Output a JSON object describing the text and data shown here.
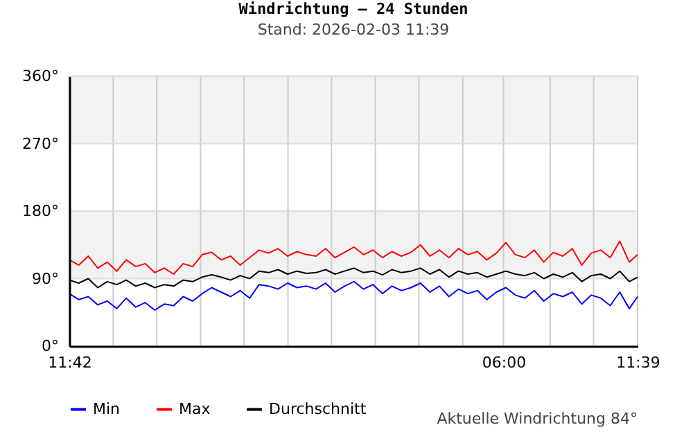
{
  "chart_data": {
    "type": "line",
    "title": "Windrichtung – 24 Stunden",
    "subtitle": "Stand: 2026-02-03 11:39",
    "x": [
      "2026-02-02T11:42",
      "2026-02-02T12:06",
      "2026-02-02T12:30",
      "2026-02-02T12:54",
      "2026-02-02T13:18",
      "2026-02-02T13:42",
      "2026-02-02T14:06",
      "2026-02-02T14:30",
      "2026-02-02T14:54",
      "2026-02-02T15:18",
      "2026-02-02T15:42",
      "2026-02-02T16:06",
      "2026-02-02T16:30",
      "2026-02-02T16:54",
      "2026-02-02T17:18",
      "2026-02-02T17:42",
      "2026-02-02T18:06",
      "2026-02-02T18:30",
      "2026-02-02T18:54",
      "2026-02-02T19:18",
      "2026-02-02T19:42",
      "2026-02-02T20:06",
      "2026-02-02T20:30",
      "2026-02-02T20:54",
      "2026-02-02T21:18",
      "2026-02-02T21:42",
      "2026-02-02T22:06",
      "2026-02-02T22:30",
      "2026-02-02T22:54",
      "2026-02-02T23:18",
      "2026-02-02T23:42",
      "2026-02-03T00:06",
      "2026-02-03T00:30",
      "2026-02-03T00:54",
      "2026-02-03T01:18",
      "2026-02-03T01:42",
      "2026-02-03T02:06",
      "2026-02-03T02:30",
      "2026-02-03T02:54",
      "2026-02-03T03:18",
      "2026-02-03T03:42",
      "2026-02-03T04:06",
      "2026-02-03T04:30",
      "2026-02-03T04:54",
      "2026-02-03T05:18",
      "2026-02-03T05:42",
      "2026-02-03T06:06",
      "2026-02-03T06:30",
      "2026-02-03T06:54",
      "2026-02-03T07:18",
      "2026-02-03T07:42",
      "2026-02-03T08:06",
      "2026-02-03T08:30",
      "2026-02-03T08:54",
      "2026-02-03T09:18",
      "2026-02-03T09:42",
      "2026-02-03T10:06",
      "2026-02-03T10:30",
      "2026-02-03T10:54",
      "2026-02-03T11:18",
      "2026-02-03T11:39"
    ],
    "series": [
      {
        "name": "Min",
        "color": "#0000ff",
        "values": [
          70,
          62,
          66,
          55,
          60,
          50,
          64,
          52,
          58,
          48,
          56,
          54,
          66,
          60,
          70,
          78,
          72,
          66,
          74,
          64,
          82,
          80,
          76,
          84,
          78,
          80,
          76,
          84,
          72,
          80,
          86,
          76,
          82,
          70,
          80,
          74,
          78,
          84,
          72,
          80,
          66,
          76,
          70,
          74,
          62,
          72,
          78,
          68,
          64,
          74,
          60,
          70,
          66,
          72,
          56,
          68,
          64,
          54,
          72,
          50,
          66
        ]
      },
      {
        "name": "Max",
        "color": "#ff0000",
        "values": [
          115,
          108,
          120,
          104,
          112,
          100,
          115,
          106,
          110,
          98,
          104,
          96,
          110,
          106,
          122,
          125,
          115,
          120,
          108,
          118,
          128,
          124,
          130,
          120,
          126,
          122,
          120,
          130,
          118,
          125,
          132,
          122,
          128,
          118,
          126,
          120,
          125,
          135,
          120,
          128,
          118,
          130,
          122,
          126,
          115,
          124,
          138,
          122,
          118,
          128,
          112,
          125,
          120,
          130,
          108,
          124,
          128,
          118,
          140,
          112,
          122
        ]
      },
      {
        "name": "Durchschnitt",
        "color": "#000000",
        "values": [
          88,
          84,
          90,
          78,
          86,
          82,
          88,
          80,
          84,
          78,
          82,
          80,
          88,
          86,
          92,
          95,
          92,
          88,
          94,
          90,
          100,
          98,
          102,
          96,
          100,
          97,
          98,
          102,
          96,
          100,
          104,
          98,
          100,
          95,
          102,
          98,
          100,
          104,
          96,
          102,
          92,
          100,
          96,
          98,
          92,
          96,
          100,
          96,
          94,
          98,
          90,
          96,
          92,
          98,
          86,
          94,
          96,
          90,
          100,
          86,
          92
        ]
      }
    ],
    "xlim": [
      "2026-02-02T11:42",
      "2026-02-03T11:39"
    ],
    "xticks": [
      {
        "value": "2026-02-02T11:42",
        "label": "11:42"
      },
      {
        "value": "2026-02-02T13:33",
        "label": null
      },
      {
        "value": "2026-02-02T15:23",
        "label": null
      },
      {
        "value": "2026-02-02T17:14",
        "label": null
      },
      {
        "value": "2026-02-02T19:04",
        "label": null
      },
      {
        "value": "2026-02-02T20:55",
        "label": null
      },
      {
        "value": "2026-02-02T22:45",
        "label": null
      },
      {
        "value": "2026-02-03T00:36",
        "label": null
      },
      {
        "value": "2026-02-03T02:26",
        "label": null
      },
      {
        "value": "2026-02-03T04:17",
        "label": null
      },
      {
        "value": "2026-02-03T06:00",
        "label": "06:00"
      },
      {
        "value": "2026-02-03T07:58",
        "label": null
      },
      {
        "value": "2026-02-03T09:48",
        "label": null
      },
      {
        "value": "2026-02-03T11:39",
        "label": "11:39"
      }
    ],
    "ylim": [
      0,
      360
    ],
    "yticks": [
      {
        "value": 0,
        "label": "0°"
      },
      {
        "value": 90,
        "label": "90°"
      },
      {
        "value": 180,
        "label": "180°"
      },
      {
        "value": 270,
        "label": "270°"
      },
      {
        "value": 360,
        "label": "360°"
      }
    ],
    "bands": [
      {
        "axis": "y",
        "from": 90,
        "to": 180,
        "color": "#f2f2f2"
      },
      {
        "axis": "y",
        "from": 270,
        "to": 360,
        "color": "#f2f2f2"
      }
    ],
    "grid": true,
    "legend": "bottom",
    "marker": "none",
    "line_style": "solid",
    "annotations": [
      "Aktuelle Windrichtung 84°"
    ]
  }
}
